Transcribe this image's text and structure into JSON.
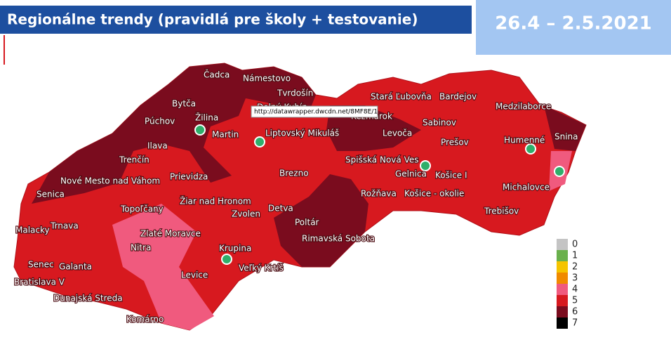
{
  "header": {
    "title": "Regionálne trendy (pravidlá pre školy + testovanie)",
    "date": "26.4 – 2.5.2021"
  },
  "tooltip": "http://datawrapper.dwcdn.net/8MF8E/1",
  "districts": [
    "Čadca",
    "Námestovo",
    "Tvrdošín",
    "Bytča",
    "Dolný Kubín",
    "Žilina",
    "Púchov",
    "Martin",
    "Liptovský Mikuláš",
    "Ilava",
    "Trenčín",
    "Nové Mesto nad Váhom",
    "Prievidza",
    "Senica",
    "Brezno",
    "Topoľčany",
    "Žiar nad Hronom",
    "Zvolen",
    "Detva",
    "Malacky",
    "Trnava",
    "Zlaté Moravce",
    "Poltár",
    "Rimavská Sobota",
    "Nitra",
    "Krupina",
    "Senec",
    "Galanta",
    "Veľký Krtíš",
    "Levice",
    "Bratislava V",
    "Dunajská Streda",
    "Komárno",
    "Stará Ľubovňa",
    "Bardejov",
    "Kežmarok",
    "Medzilaborce",
    "Levoča",
    "Sabinov",
    "Humenné",
    "Snina",
    "Prešov",
    "Spišská Nová Ves",
    "Gelnica",
    "Košice I",
    "Rožňava",
    "Košice - okolie",
    "Michalovce",
    "Trebišov"
  ],
  "legend": [
    {
      "value": 0,
      "color": "#c4c4c4"
    },
    {
      "value": 1,
      "color": "#6ab04c"
    },
    {
      "value": 2,
      "color": "#f5c400"
    },
    {
      "value": 3,
      "color": "#f08a00"
    },
    {
      "value": 4,
      "color": "#f05a7e"
    },
    {
      "value": 5,
      "color": "#d7191f"
    },
    {
      "value": 6,
      "color": "#7a0c1e"
    },
    {
      "value": 7,
      "color": "#000000"
    }
  ]
}
